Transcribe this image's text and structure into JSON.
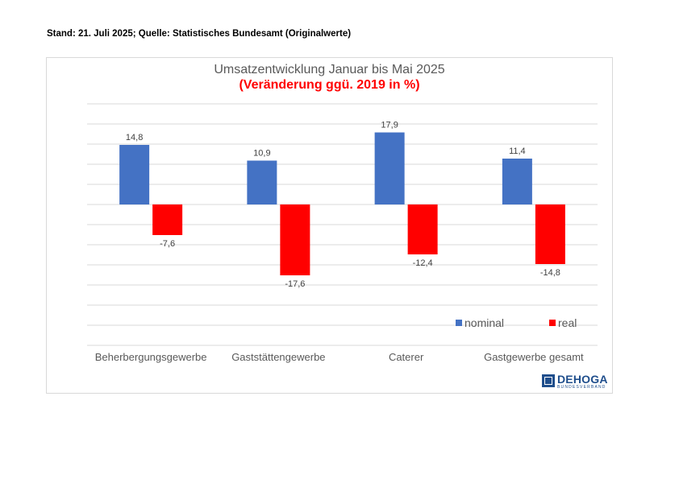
{
  "header_note": "Stand: 21. Juli 2025; Quelle: Statistisches Bundesamt (Originalwerte)",
  "logo": {
    "text": "DEHOGA",
    "subtext": "BUNDESVERBAND",
    "color": "#1f4e8c"
  },
  "chart_data": {
    "type": "bar",
    "title": "Umsatzentwicklung Januar bis Mai 2025",
    "subtitle": "(Veränderung ggü. 2019 in %)",
    "categories": [
      "Beherbergungsgewerbe",
      "Gaststättengewerbe",
      "Caterer",
      "Gastgewerbe gesamt"
    ],
    "series": [
      {
        "name": "nominal",
        "color": "#4472c4",
        "values": [
          14.8,
          10.9,
          17.9,
          11.4
        ],
        "labels": [
          "14,8",
          "10,9",
          "17,9",
          "11,4"
        ]
      },
      {
        "name": "real",
        "color": "#ff0000",
        "values": [
          -7.6,
          -17.6,
          -12.4,
          -14.8
        ],
        "labels": [
          "-7,6",
          "-17,6",
          "-12,4",
          "-14,8"
        ]
      }
    ],
    "ylim": [
      -35,
      25
    ],
    "grid": true,
    "legend": "bottom-right"
  }
}
